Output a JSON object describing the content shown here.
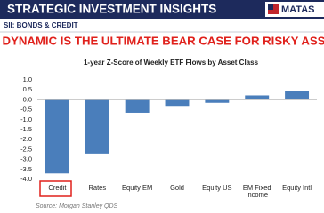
{
  "header": {
    "title": "STRATEGIC INVESTMENT INSIGHTS",
    "logo": "MATAS",
    "section": "SII: BONDS & CREDIT",
    "headline": "THIS DYNAMIC IS THE ULTIMATE BEAR CASE FOR RISKY ASSETS"
  },
  "chart_data": {
    "type": "bar",
    "title": "1-year Z-Score of Weekly ETF Flows by Asset Class",
    "categories": [
      "Credit",
      "Rates",
      "Equity EM",
      "Gold",
      "Equity US",
      "EM Fixed Income",
      "Equity Intl"
    ],
    "values": [
      -3.7,
      -2.7,
      -0.65,
      -0.35,
      -0.15,
      0.22,
      0.45
    ],
    "color": "#4a7ebb",
    "ylim": [
      -4,
      1
    ],
    "yticks": [
      {
        "value": 1,
        "label": "1.0"
      },
      0.5,
      {
        "value": 0,
        "label": "0.0"
      },
      -0.5,
      {
        "value": -1,
        "label": "-1.0"
      },
      -1.5,
      {
        "value": -2,
        "label": "-2.0"
      },
      -2.5,
      {
        "value": -3,
        "label": "-3.0"
      },
      -3.5,
      {
        "value": -4,
        "label": "-4.0"
      }
    ],
    "source": "Source: Morgan Stanley QDS"
  }
}
